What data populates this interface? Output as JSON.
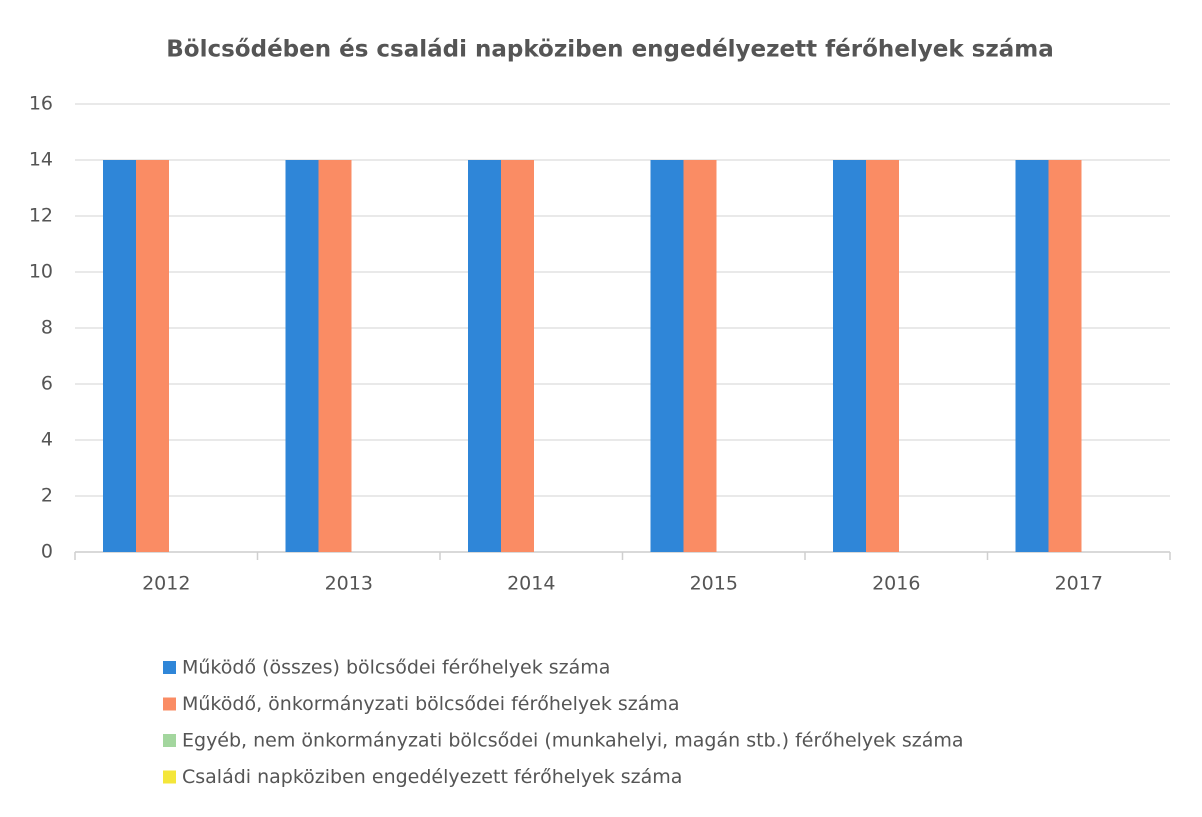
{
  "chart_data": {
    "type": "bar",
    "title": "Bölcsődében és családi napköziben engedélyezett férőhelyek száma",
    "categories": [
      "2012",
      "2013",
      "2014",
      "2015",
      "2016",
      "2017"
    ],
    "series": [
      {
        "name": "Működő (összes) bölcsődei férőhelyek száma",
        "color": "#2f86d8",
        "values": [
          14,
          14,
          14,
          14,
          14,
          14
        ]
      },
      {
        "name": "Működő, önkormányzati bölcsődei férőhelyek száma",
        "color": "#fa8c64",
        "values": [
          14,
          14,
          14,
          14,
          14,
          14
        ]
      },
      {
        "name": "Egyéb, nem önkormányzati bölcsődei (munkahelyi, magán stb.) férőhelyek száma",
        "color": "#a3d69e",
        "values": [
          0,
          0,
          0,
          0,
          0,
          0
        ]
      },
      {
        "name": "Családi napköziben engedélyezett férőhelyek száma",
        "color": "#f4e63a",
        "values": [
          0,
          0,
          0,
          0,
          0,
          0
        ]
      }
    ],
    "ylim": [
      0,
      16
    ],
    "yticks": [
      0,
      2,
      4,
      6,
      8,
      10,
      12,
      14,
      16
    ],
    "grid": true,
    "legend": "bottom"
  }
}
